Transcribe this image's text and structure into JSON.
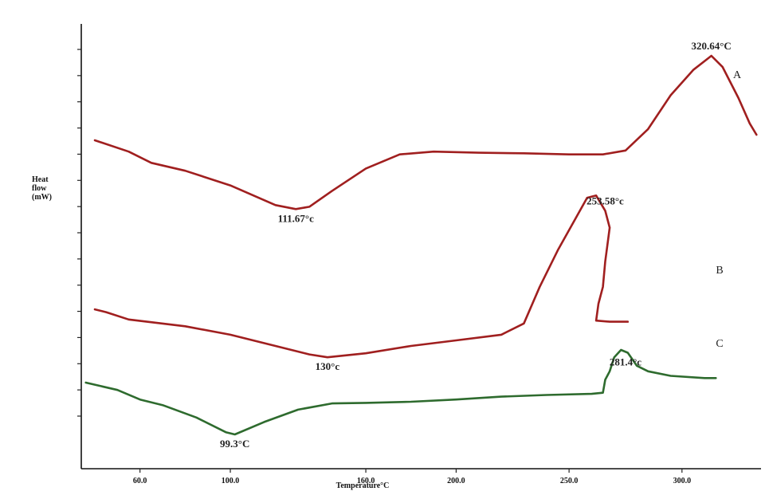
{
  "chart_data": {
    "type": "line",
    "title": "",
    "xlabel": "Temperature°C",
    "ylabel": "Heat flow (mW)",
    "ylabel_lines": [
      "Heat",
      "flow",
      "(mW)"
    ],
    "xlim": [
      34,
      335
    ],
    "x_ticks": [
      60,
      100,
      160,
      200,
      250,
      300
    ],
    "x_tick_labels": [
      "60.0",
      "100.0",
      "160.0",
      "200.0",
      "250.0",
      "300.0"
    ],
    "y_ticks_count": 15,
    "grid": false,
    "colors": {
      "A": "#a01f1f",
      "B": "#a01f1f",
      "C": "#2e6b2e",
      "axis": "#111111"
    },
    "series": [
      {
        "label": "A",
        "peak_labels": [
          {
            "x": 129,
            "text": "111.67°c"
          },
          {
            "x": 313,
            "text": "320.64°C"
          }
        ],
        "points": [
          [
            40,
            0.2
          ],
          [
            55,
            0.4
          ],
          [
            65,
            0.6
          ],
          [
            80,
            0.74
          ],
          [
            100,
            1.0
          ],
          [
            120,
            1.35
          ],
          [
            129,
            1.42
          ],
          [
            135,
            1.38
          ],
          [
            145,
            1.1
          ],
          [
            160,
            0.7
          ],
          [
            175,
            0.45
          ],
          [
            190,
            0.4
          ],
          [
            210,
            0.42
          ],
          [
            230,
            0.43
          ],
          [
            250,
            0.45
          ],
          [
            265,
            0.45
          ],
          [
            275,
            0.38
          ],
          [
            285,
            0.0
          ],
          [
            295,
            -0.6
          ],
          [
            305,
            -1.05
          ],
          [
            313,
            -1.3
          ],
          [
            318,
            -1.1
          ],
          [
            325,
            -0.55
          ],
          [
            330,
            -0.1
          ],
          [
            333,
            0.1
          ]
        ]
      },
      {
        "label": "B",
        "peak_labels": [
          {
            "x": 143,
            "text": "130°c"
          },
          {
            "x": 266,
            "text": "253.58°c"
          }
        ],
        "points": [
          [
            40,
            3.2
          ],
          [
            45,
            3.25
          ],
          [
            55,
            3.38
          ],
          [
            80,
            3.5
          ],
          [
            100,
            3.65
          ],
          [
            120,
            3.85
          ],
          [
            135,
            4.0
          ],
          [
            143,
            4.05
          ],
          [
            160,
            3.98
          ],
          [
            180,
            3.85
          ],
          [
            200,
            3.75
          ],
          [
            220,
            3.65
          ],
          [
            230,
            3.45
          ],
          [
            237,
            2.8
          ],
          [
            245,
            2.15
          ],
          [
            252,
            1.65
          ],
          [
            258,
            1.22
          ],
          [
            262,
            1.18
          ],
          [
            266,
            1.45
          ],
          [
            268,
            1.75
          ],
          [
            266,
            2.35
          ],
          [
            265,
            2.8
          ],
          [
            263,
            3.1
          ],
          [
            262,
            3.4
          ],
          [
            268,
            3.42
          ],
          [
            276,
            3.42
          ]
        ]
      },
      {
        "label": "C",
        "peak_labels": [
          {
            "x": 102,
            "text": "99.3°C"
          },
          {
            "x": 275,
            "text": "281.4°c"
          }
        ],
        "points": [
          [
            36,
            4.5
          ],
          [
            50,
            4.63
          ],
          [
            60,
            4.8
          ],
          [
            70,
            4.9
          ],
          [
            85,
            5.12
          ],
          [
            98,
            5.38
          ],
          [
            102,
            5.42
          ],
          [
            115,
            5.2
          ],
          [
            130,
            4.98
          ],
          [
            145,
            4.87
          ],
          [
            160,
            4.86
          ],
          [
            180,
            4.84
          ],
          [
            200,
            4.8
          ],
          [
            220,
            4.75
          ],
          [
            240,
            4.72
          ],
          [
            260,
            4.7
          ],
          [
            265,
            4.68
          ],
          [
            266,
            4.45
          ],
          [
            268,
            4.3
          ],
          [
            270,
            4.05
          ],
          [
            273,
            3.92
          ],
          [
            276,
            3.97
          ],
          [
            280,
            4.2
          ],
          [
            285,
            4.3
          ],
          [
            295,
            4.38
          ],
          [
            310,
            4.42
          ],
          [
            315,
            4.42
          ]
        ]
      }
    ]
  }
}
